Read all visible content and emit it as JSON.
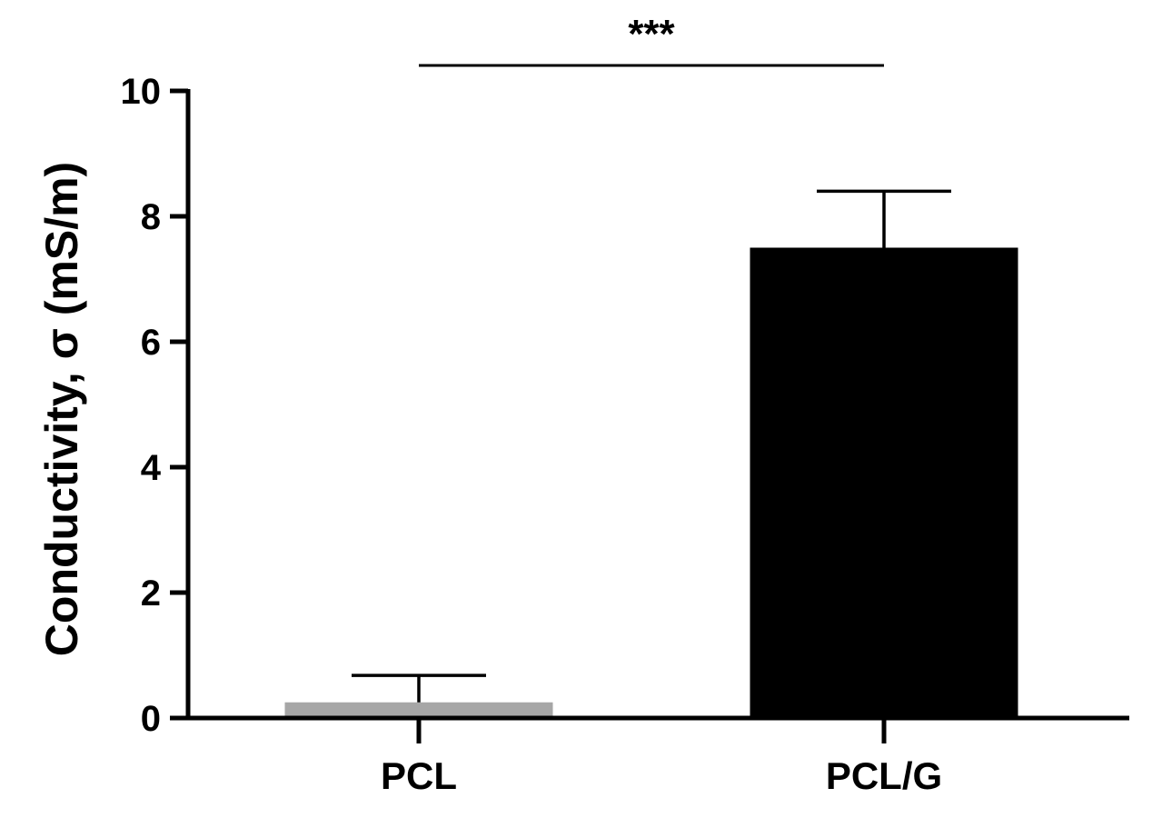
{
  "chart_data": {
    "type": "bar",
    "categories": [
      "PCL",
      "PCL/G"
    ],
    "values": [
      0.25,
      7.5
    ],
    "errors": [
      0.43,
      0.9
    ],
    "colors": [
      "#a6a6a6",
      "#000000"
    ],
    "xlabel": "",
    "ylabel": "Conductivity, σ (mS/m)",
    "ylim": [
      0,
      10
    ],
    "yticks": [
      "0",
      "2",
      "4",
      "6",
      "8",
      "10"
    ],
    "significance": {
      "between": [
        "PCL",
        "PCL/G"
      ],
      "label": "***"
    },
    "grid": false,
    "legend": false
  }
}
